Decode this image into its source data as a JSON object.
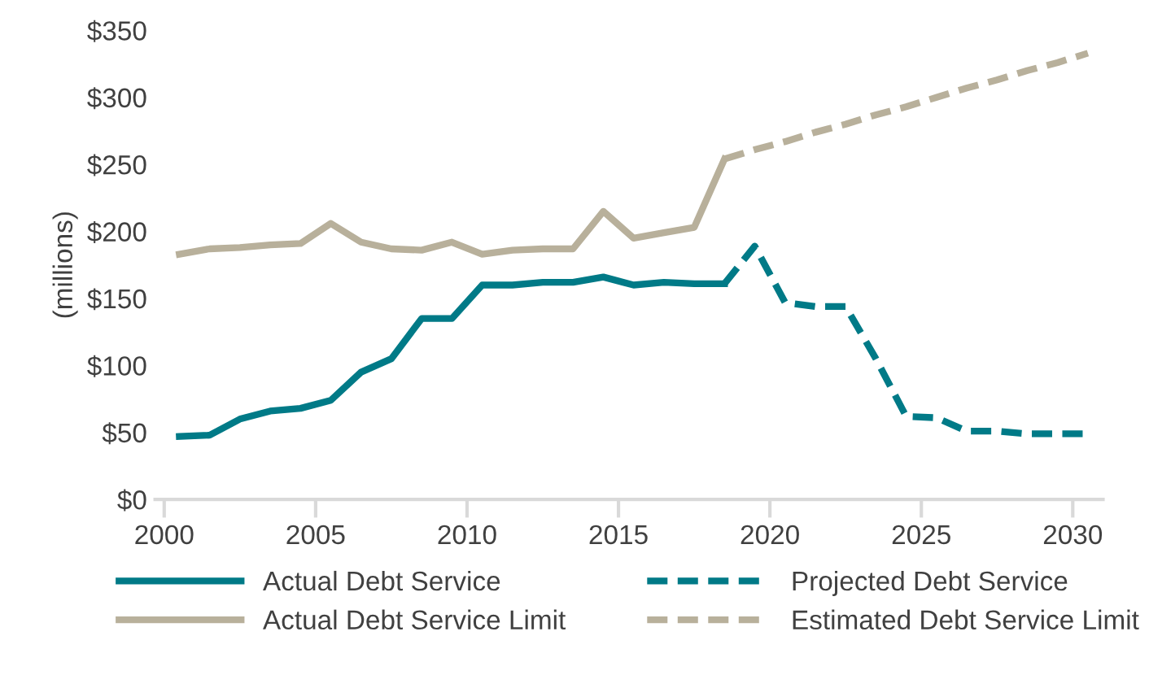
{
  "chart_data": {
    "type": "line",
    "ylabel": "(millions)",
    "xlim": [
      1999.7,
      2031
    ],
    "xticks": [
      2000,
      2005,
      2010,
      2015,
      2020,
      2025,
      2030
    ],
    "ylim": [
      0,
      350
    ],
    "yticks": [
      {
        "value": 0,
        "label": "$0"
      },
      {
        "value": 50,
        "label": "$50"
      },
      {
        "value": 100,
        "label": "$100"
      },
      {
        "value": 150,
        "label": "$150"
      },
      {
        "value": 200,
        "label": "$200"
      },
      {
        "value": 250,
        "label": "$250"
      },
      {
        "value": 300,
        "label": "$300"
      },
      {
        "value": 350,
        "label": "$350"
      }
    ],
    "grid": false,
    "legend": "bottom",
    "series": [
      {
        "name": "Actual Debt Service",
        "color": "#007a87",
        "line_style": "solid",
        "x": [
          2000.5,
          2001.5,
          2002.5,
          2003.5,
          2004.5,
          2005.5,
          2006.5,
          2007.5,
          2008.5,
          2009.5,
          2010.5,
          2011.5,
          2012.5,
          2013.5,
          2014.5,
          2015.5,
          2016.5,
          2017.5,
          2018.5
        ],
        "values": [
          47,
          48,
          60,
          66,
          68,
          74,
          95,
          105,
          135,
          135,
          160,
          160,
          162,
          162,
          166,
          160,
          162,
          161,
          161
        ]
      },
      {
        "name": "Projected Debt Service",
        "color": "#007a87",
        "line_style": "dashed",
        "x": [
          2018.5,
          2019.5,
          2020.5,
          2021.5,
          2022.5,
          2023.5,
          2024.5,
          2025.5,
          2026.5,
          2027.5,
          2028.5,
          2029.5,
          2030.5
        ],
        "values": [
          161,
          189,
          147,
          144,
          144,
          105,
          62,
          61,
          51,
          51,
          49,
          49,
          49
        ]
      },
      {
        "name": "Actual Debt Service Limit",
        "color": "#b8b09b",
        "line_style": "solid",
        "x": [
          2000.5,
          2001.5,
          2002.5,
          2003.5,
          2004.5,
          2005.5,
          2006.5,
          2007.5,
          2008.5,
          2009.5,
          2010.5,
          2011.5,
          2012.5,
          2013.5,
          2014.5,
          2015.5,
          2016.5,
          2017.5,
          2018.5
        ],
        "values": [
          183,
          187,
          188,
          190,
          191,
          206,
          192,
          187,
          186,
          192,
          183,
          186,
          187,
          187,
          215,
          195,
          199,
          203,
          254
        ]
      },
      {
        "name": "Estimated Debt Service Limit",
        "color": "#b8b09b",
        "line_style": "dashed",
        "x": [
          2018.5,
          2019.5,
          2020.5,
          2021.5,
          2022.5,
          2023.5,
          2024.5,
          2025.5,
          2026.5,
          2027.5,
          2028.5,
          2029.5,
          2030.5
        ],
        "values": [
          254,
          261,
          267,
          274,
          280,
          287,
          293,
          300,
          307,
          313,
          320,
          326,
          333
        ]
      }
    ]
  }
}
